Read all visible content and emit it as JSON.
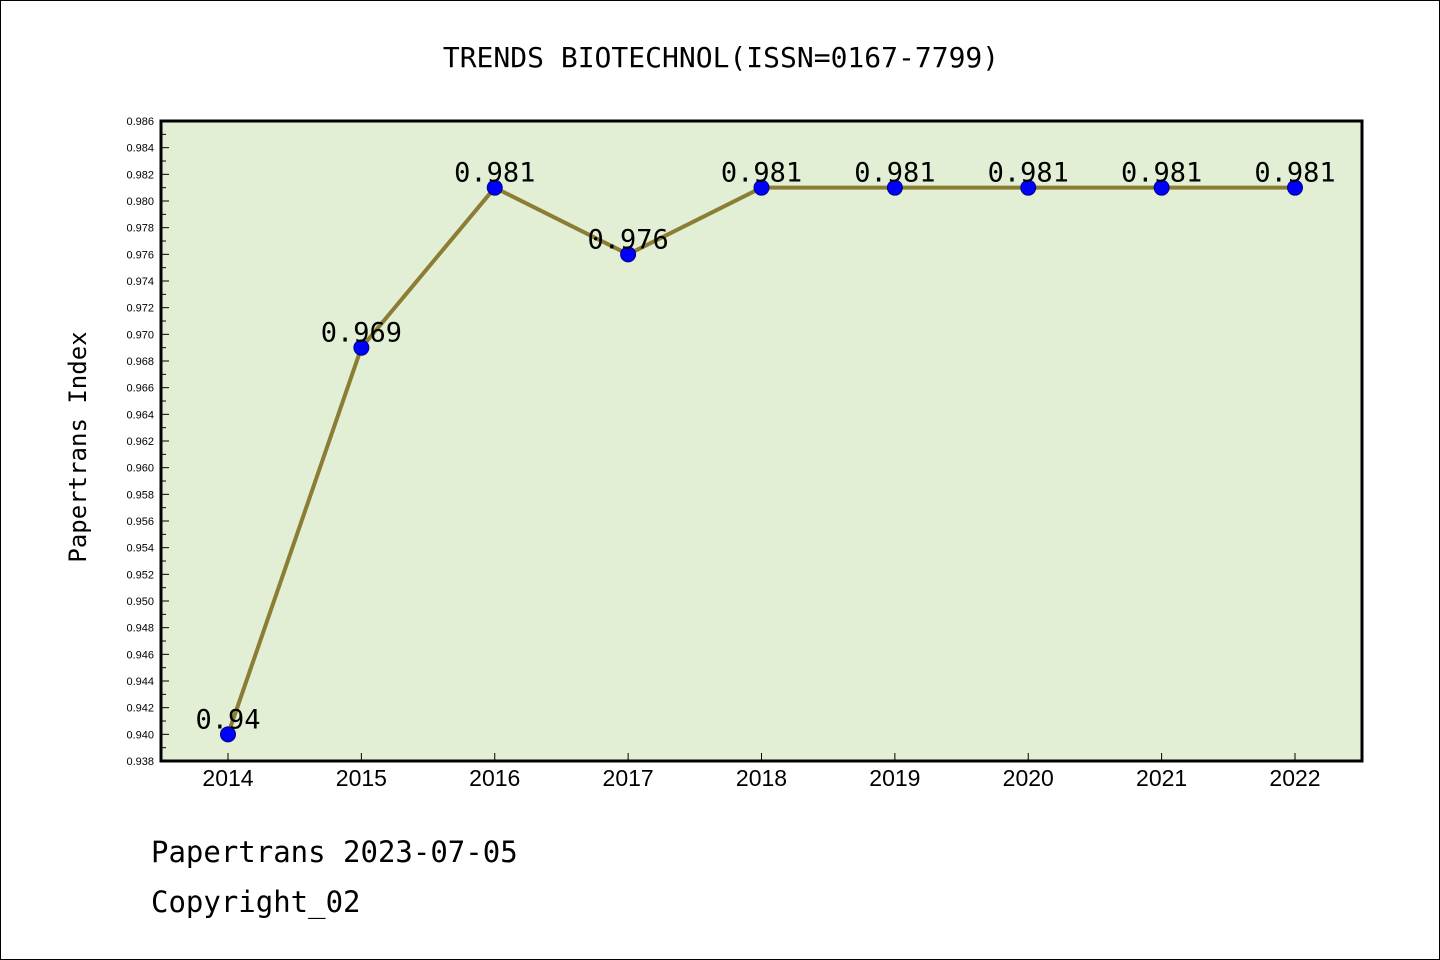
{
  "chart_data": {
    "type": "line",
    "title": "TRENDS BIOTECHNOL(ISSN=0167-7799)",
    "xlabel": "",
    "ylabel": "Papertrans Index",
    "categories": [
      "2014",
      "2015",
      "2016",
      "2017",
      "2018",
      "2019",
      "2020",
      "2021",
      "2022"
    ],
    "series": [
      {
        "values": [
          0.94,
          0.969,
          0.981,
          0.976,
          0.981,
          0.981,
          0.981,
          0.981,
          0.981
        ],
        "data_labels": [
          "0.94",
          "0.969",
          "0.981",
          "0.976",
          "0.981",
          "0.981",
          "0.981",
          "0.981",
          "0.981"
        ]
      }
    ],
    "ylim": [
      0.938,
      0.986
    ],
    "yticks": [
      "0.938",
      "0.940",
      "0.942",
      "0.944",
      "0.946",
      "0.948",
      "0.950",
      "0.952",
      "0.954",
      "0.956",
      "0.958",
      "0.960",
      "0.962",
      "0.964",
      "0.966",
      "0.968",
      "0.970",
      "0.972",
      "0.974",
      "0.976",
      "0.978",
      "0.980",
      "0.982",
      "0.984",
      "0.986"
    ],
    "grid": false,
    "legend": "none",
    "colors": {
      "plot_background": "#e2efd5",
      "line": "#8b7d33",
      "marker": "#0000ff",
      "axis": "#000000"
    }
  },
  "footer": {
    "date_line": "Papertrans 2023-07-05",
    "copyright_line": "Copyright_02"
  }
}
